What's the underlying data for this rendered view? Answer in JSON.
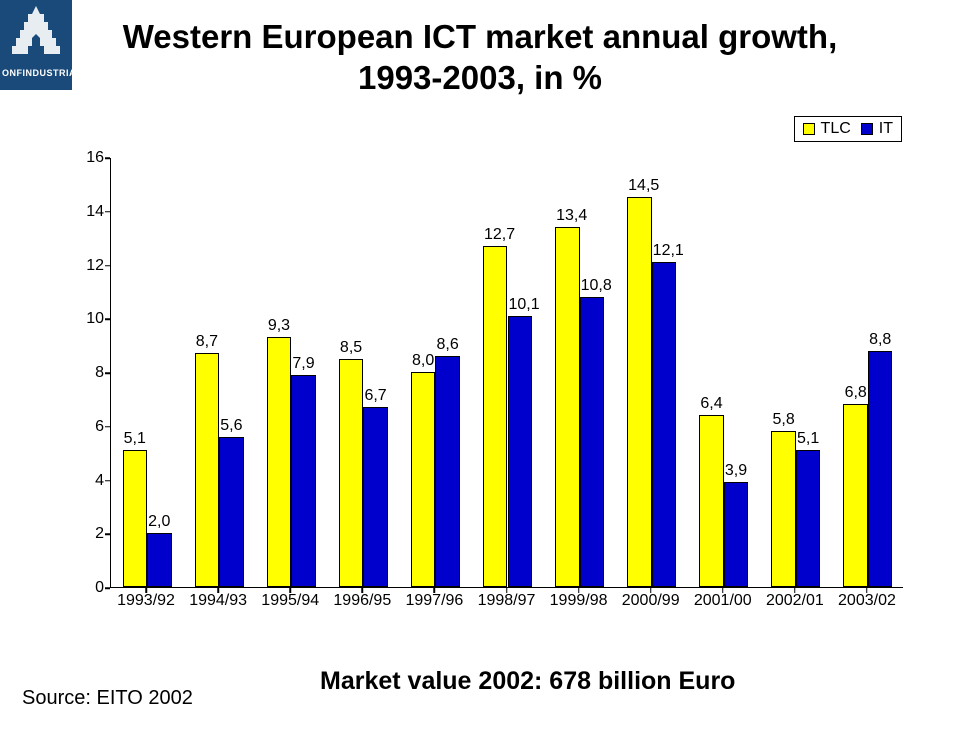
{
  "logo_text": "ONFINDUSTRIA",
  "title_line1": "Western European ICT market annual growth,",
  "title_line2": "1993-2003, in %",
  "legend": {
    "items": [
      {
        "label": "TLC",
        "color": "#ffff00"
      },
      {
        "label": "IT",
        "color": "#0000cc"
      }
    ],
    "border_color": "#000000"
  },
  "chart": {
    "type": "bar",
    "ylim": [
      0,
      16
    ],
    "ytick_step": 2,
    "yticks": [
      0,
      2,
      4,
      6,
      8,
      10,
      12,
      14,
      16
    ],
    "categories": [
      "1993/92",
      "1994/93",
      "1995/94",
      "1996/95",
      "1997/96",
      "1998/97",
      "1999/98",
      "2000/99",
      "2001/00",
      "2002/01",
      "2003/02"
    ],
    "series": [
      {
        "name": "TLC",
        "color": "#ffff00",
        "values": [
          5.1,
          8.7,
          9.3,
          8.5,
          8.0,
          12.7,
          13.4,
          14.5,
          6.4,
          5.8,
          6.8
        ],
        "labels": [
          "5,1",
          "8,7",
          "9,3",
          "8,5",
          "8,0",
          "12,7",
          "13,4",
          "14,5",
          "6,4",
          "5,8",
          "6,8"
        ]
      },
      {
        "name": "IT",
        "color": "#0000cc",
        "values": [
          2.0,
          5.6,
          7.9,
          6.7,
          8.6,
          10.1,
          10.8,
          12.1,
          3.9,
          5.1,
          8.8
        ],
        "labels": [
          "2,0",
          "5,6",
          "7,9",
          "6,7",
          "8,6",
          "10,1",
          "10,8",
          "12,1",
          "3,9",
          "5,1",
          "8,8"
        ]
      }
    ],
    "bar_border_color": "#000000",
    "axis_color": "#000000",
    "background_color": "#ffffff",
    "label_fontsize": 16,
    "axis_fontsize": 16
  },
  "source_text": "Source: EITO 2002",
  "market_text": "Market value 2002: 678 billion Euro"
}
